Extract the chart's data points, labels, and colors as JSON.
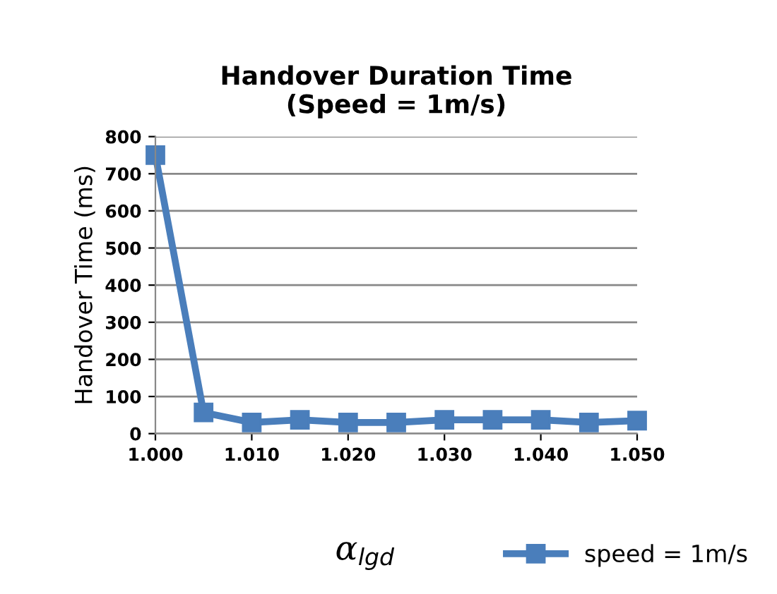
{
  "chart_data": {
    "type": "line",
    "title": "Handover Duration Time\n(Speed = 1m/s)",
    "xlabel": "α$_{lgd}$",
    "ylabel": "Handover Time (ms)",
    "x": [
      1.0,
      1.005,
      1.01,
      1.015,
      1.02,
      1.025,
      1.03,
      1.035,
      1.04,
      1.045,
      1.05
    ],
    "series": [
      {
        "name": "speed = 1m/s",
        "color": "#4a7ebb",
        "values": [
          750,
          57,
          30,
          37,
          30,
          30,
          37,
          37,
          37,
          30,
          35
        ]
      }
    ],
    "xlim": [
      1.0,
      1.05
    ],
    "xticks": [
      {
        "value": 1.0,
        "label": "1.000"
      },
      {
        "value": 1.01,
        "label": "1.010"
      },
      {
        "value": 1.02,
        "label": "1.020"
      },
      {
        "value": 1.03,
        "label": "1.030"
      },
      {
        "value": 1.04,
        "label": "1.040"
      },
      {
        "value": 1.05,
        "label": "1.050"
      }
    ],
    "ylim": [
      0,
      800
    ],
    "yticks": [
      0,
      100,
      200,
      300,
      400,
      500,
      600,
      700,
      800
    ],
    "grid": "y",
    "legend": "bottom right",
    "marker": "square",
    "line_style": "solid"
  }
}
